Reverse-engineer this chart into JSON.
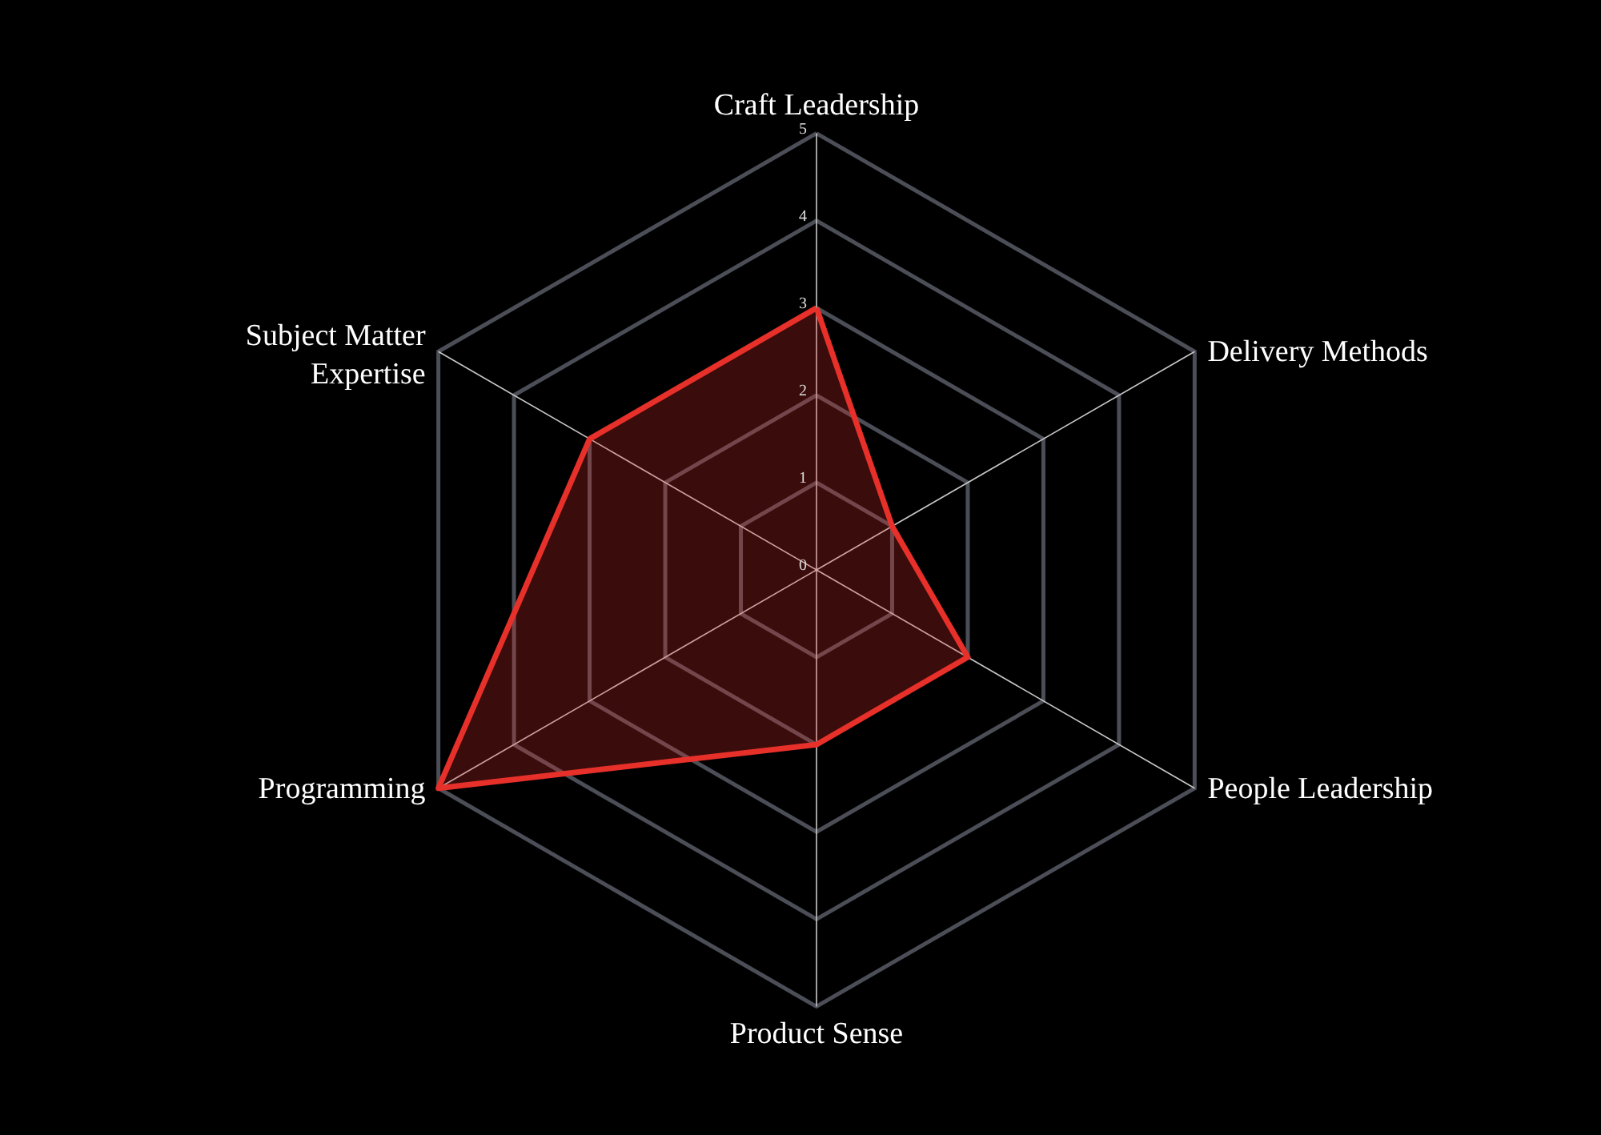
{
  "chart_data": {
    "type": "radar",
    "categories": [
      "Craft Leadership",
      "Delivery Methods",
      "People Leadership",
      "Product Sense",
      "Programming",
      "Subject Matter Expertise"
    ],
    "series": [
      {
        "color": "#e8302a",
        "values": [
          3,
          1,
          2,
          2,
          5,
          3
        ]
      }
    ],
    "ylim": [
      0,
      5
    ],
    "yticks": [
      0,
      1,
      2,
      3,
      4,
      5
    ],
    "grid": true
  }
}
